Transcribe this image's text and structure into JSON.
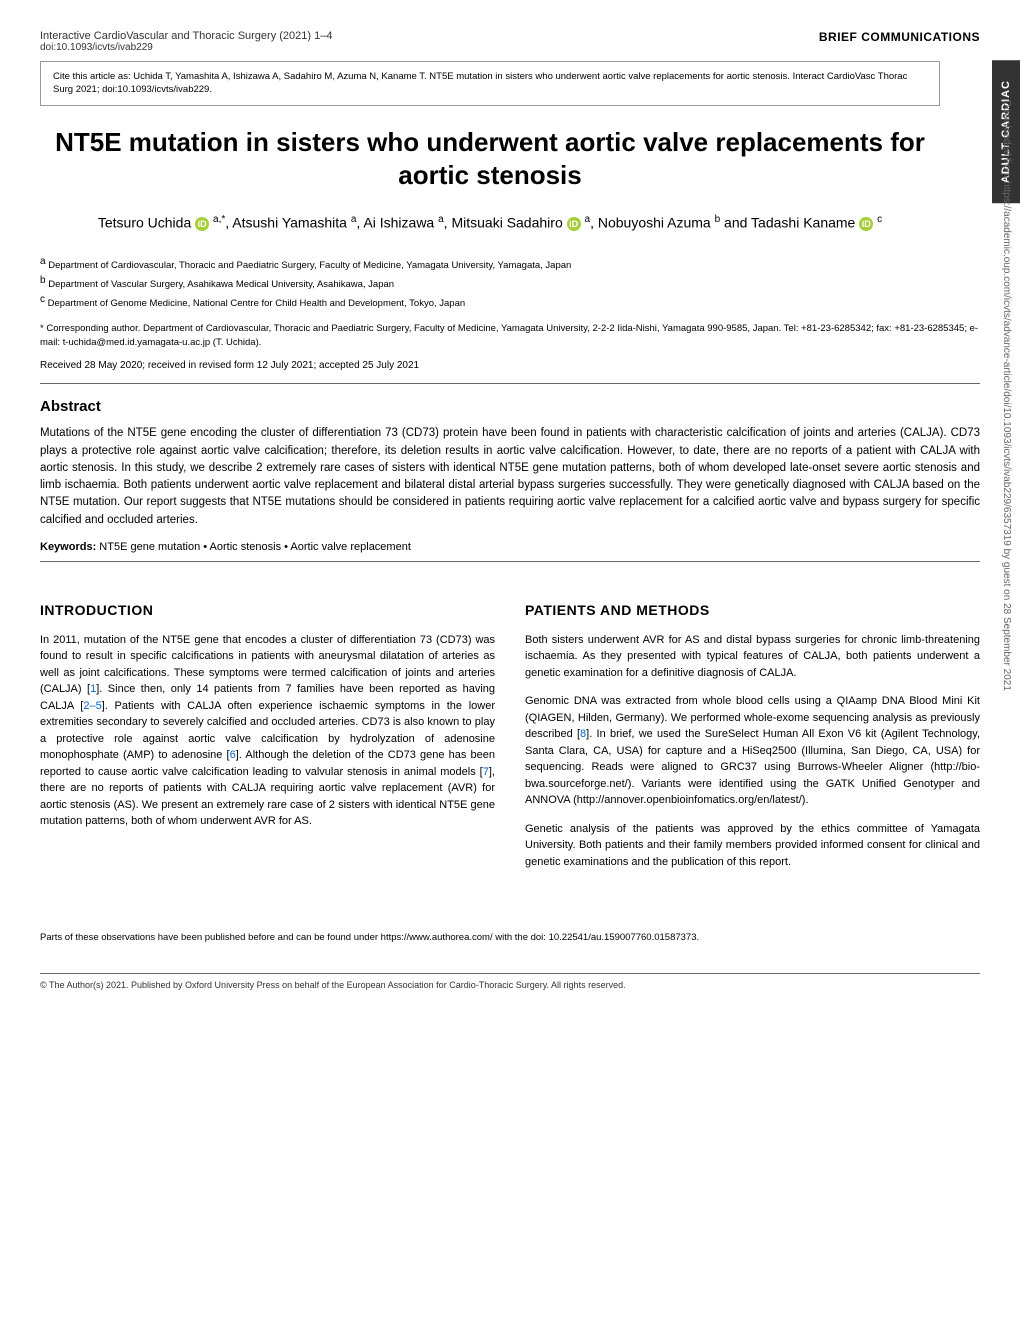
{
  "header": {
    "journal": "Interactive CardioVascular and Thoracic Surgery (2021) 1–4",
    "doi": "doi:10.1093/icvts/ivab229",
    "section_label": "BRIEF COMMUNICATIONS"
  },
  "citation": "Cite this article as: Uchida T, Yamashita A, Ishizawa A, Sadahiro M, Azuma N, Kaname T. NT5E mutation in sisters who underwent aortic valve replacements for aortic stenosis. Interact CardioVasc Thorac Surg 2021; doi:10.1093/icvts/ivab229.",
  "sidebar_tab": "ADULT CARDIAC",
  "title": "NT5E mutation in sisters who underwent aortic valve replacements for aortic stenosis",
  "authors": [
    {
      "name": "Tetsuro Uchida",
      "orcid": true,
      "sup": "a,*"
    },
    {
      "name": "Atsushi Yamashita",
      "orcid": false,
      "sup": "a"
    },
    {
      "name": "Ai Ishizawa",
      "orcid": false,
      "sup": "a"
    },
    {
      "name": "Mitsuaki Sadahiro",
      "orcid": true,
      "sup": "a"
    },
    {
      "name": "Nobuyoshi Azuma",
      "orcid": false,
      "sup": "b"
    },
    {
      "name": "Tadashi Kaname",
      "orcid": true,
      "sup": "c"
    }
  ],
  "author_joiner": " and ",
  "affiliations": [
    {
      "sup": "a",
      "text": "Department of Cardiovascular, Thoracic and Paediatric Surgery, Faculty of Medicine, Yamagata University, Yamagata, Japan"
    },
    {
      "sup": "b",
      "text": "Department of Vascular Surgery, Asahikawa Medical University, Asahikawa, Japan"
    },
    {
      "sup": "c",
      "text": "Department of Genome Medicine, National Centre for Child Health and Development, Tokyo, Japan"
    }
  ],
  "corresponding": "* Corresponding author. Department of Cardiovascular, Thoracic and Paediatric Surgery, Faculty of Medicine, Yamagata University, 2-2-2 Iida-Nishi, Yamagata 990-9585, Japan. Tel: +81-23-6285342; fax: +81-23-6285345; e-mail: t-uchida@med.id.yamagata-u.ac.jp (T. Uchida).",
  "received": "Received 28 May 2020; received in revised form 12 July 2021; accepted 25 July 2021",
  "abstract": {
    "heading": "Abstract",
    "text": "Mutations of the NT5E gene encoding the cluster of differentiation 73 (CD73) protein have been found in patients with characteristic calcification of joints and arteries (CALJA). CD73 plays a protective role against aortic valve calcification; therefore, its deletion results in aortic valve calcification. However, to date, there are no reports of a patient with CALJA with aortic stenosis. In this study, we describe 2 extremely rare cases of sisters with identical NT5E gene mutation patterns, both of whom developed late-onset severe aortic stenosis and limb ischaemia. Both patients underwent aortic valve replacement and bilateral distal arterial bypass surgeries successfully. They were genetically diagnosed with CALJA based on the NT5E mutation. Our report suggests that NT5E mutations should be considered in patients requiring aortic valve replacement for a calcified aortic valve and bypass surgery for specific calcified and occluded arteries."
  },
  "keywords": {
    "label": "Keywords:",
    "text": " NT5E gene mutation • Aortic stenosis • Aortic valve replacement"
  },
  "introduction": {
    "heading": "INTRODUCTION",
    "paragraphs": [
      {
        "pre": "In 2011, mutation of the NT5E gene that encodes a cluster of differentiation 73 (CD73) was found to result in specific calcifications in patients with aneurysmal dilatation of arteries as well as joint calcifications. These symptoms were termed calcification of joints and arteries (CALJA) [",
        "ref1": "1",
        "mid1": "]. Since then, only 14 patients from 7 families have been reported as having CALJA [",
        "ref2": "2–5",
        "mid2": "]. Patients with CALJA often experience ischaemic symptoms in the lower extremities secondary to severely calcified and occluded arteries. CD73 is also known to play a protective role against aortic valve calcification by hydrolyzation of adenosine monophosphate (AMP) to adenosine [",
        "ref3": "6",
        "mid3": "]. Although the deletion of the CD73 gene has been reported to cause aortic valve calcification leading to valvular stenosis in animal models [",
        "ref4": "7",
        "post": "], there are no reports of patients with CALJA requiring aortic valve replacement (AVR) for aortic stenosis (AS). We present an extremely rare case of 2 sisters with identical NT5E gene mutation patterns, both of whom underwent AVR for AS."
      }
    ]
  },
  "methods": {
    "heading": "PATIENTS AND METHODS",
    "p1": "Both sisters underwent AVR for AS and distal bypass surgeries for chronic limb-threatening ischaemia. As they presented with typical features of CALJA, both patients underwent a genetic examination for a definitive diagnosis of CALJA.",
    "p2_pre": "Genomic DNA was extracted from whole blood cells using a QIAamp DNA Blood Mini Kit (QIAGEN, Hilden, Germany). We performed whole-exome sequencing analysis as previously described [",
    "p2_ref": "8",
    "p2_post": "]. In brief, we used the SureSelect Human All Exon V6 kit (Agilent Technology, Santa Clara, CA, USA) for capture and a HiSeq2500 (Illumina, San Diego, CA, USA) for sequencing. Reads were aligned to GRC37 using Burrows-Wheeler Aligner (http://bio-bwa.sourceforge.net/). Variants were identified using the GATK Unified Genotyper and ANNOVA (http://annover.openbioinfomatics.org/en/latest/).",
    "p3": "Genetic analysis of the patients was approved by the ethics committee of Yamagata University. Both patients and their family members provided informed consent for clinical and genetic examinations and the publication of this report."
  },
  "footnote": "Parts of these observations have been published before and can be found under https://www.authorea.com/ with the doi: 10.22541/au.159007760.01587373.",
  "copyright": "© The Author(s) 2021. Published by Oxford University Press on behalf of the European Association for Cardio-Thoracic Surgery. All rights reserved.",
  "watermark": "Downloaded from https://academic.oup.com/icvts/advance-article/doi/10.1093/icvts/ivab229/6357319 by guest on 28 September 2021",
  "orcid_glyph": "iD"
}
